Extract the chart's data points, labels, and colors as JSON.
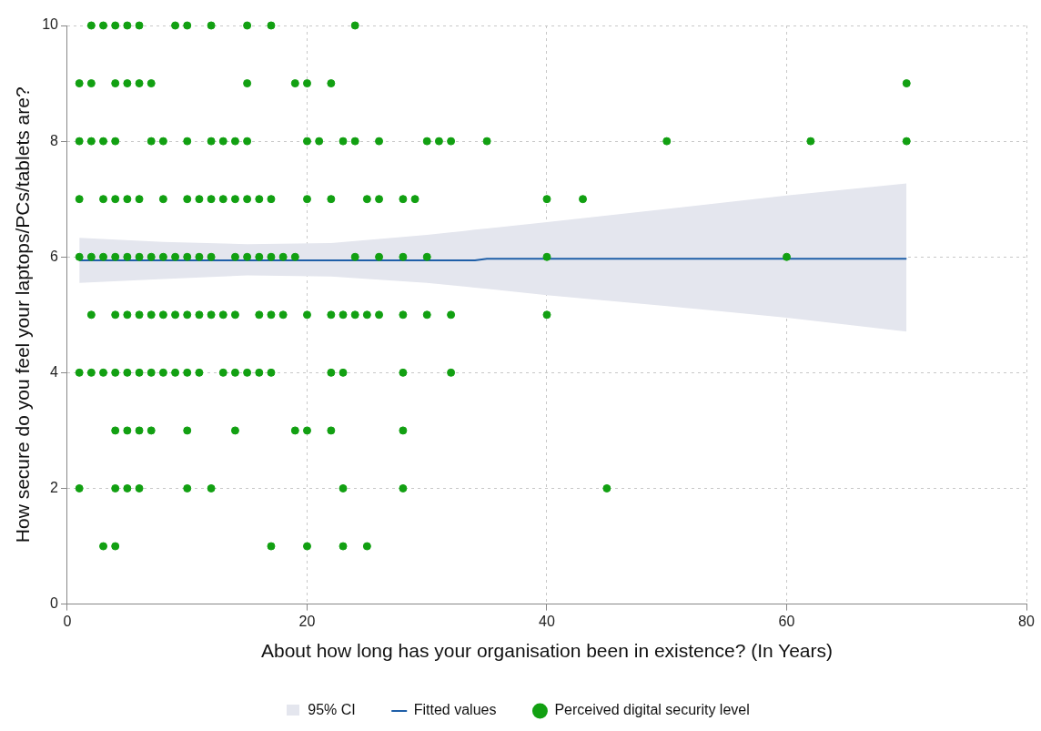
{
  "chart_data": {
    "type": "scatter",
    "xlabel": "About how long has your organisation been in existence? (In Years)",
    "ylabel": "How secure do you feel your laptops/PCs/tablets are?",
    "xlim": [
      0,
      80
    ],
    "xticks": [
      0,
      20,
      40,
      60,
      80
    ],
    "ylim": [
      0,
      10
    ],
    "yticks": [
      0,
      2,
      4,
      6,
      8,
      10
    ],
    "grid": true,
    "legend": "bottom",
    "annotations": [
      "95% CI"
    ],
    "series": [
      {
        "name": "Fitted values",
        "type": "line",
        "marker": "none",
        "color": "#1f5fa8",
        "x": [
          1,
          8,
          15,
          22,
          30,
          34,
          35,
          40,
          50,
          60,
          70
        ],
        "values": [
          5.94,
          5.94,
          5.94,
          5.94,
          5.94,
          5.94,
          5.97,
          5.97,
          5.97,
          5.97,
          5.97
        ],
        "lower": [
          5.55,
          5.62,
          5.68,
          5.66,
          5.55,
          5.47,
          5.45,
          5.34,
          5.15,
          4.95,
          4.71
        ],
        "upper": [
          6.33,
          6.26,
          6.22,
          6.24,
          6.38,
          6.47,
          6.49,
          6.6,
          6.83,
          7.06,
          7.27
        ]
      },
      {
        "name": "Perceived digital security level",
        "marker": "circle",
        "color": "#12a012",
        "x": [
          2,
          3,
          4,
          5,
          6,
          9,
          10,
          12,
          15,
          17,
          24,
          1,
          2,
          4,
          5,
          6,
          7,
          15,
          19,
          20,
          22,
          70,
          1,
          2,
          3,
          4,
          7,
          8,
          10,
          12,
          13,
          14,
          15,
          20,
          21,
          23,
          24,
          26,
          30,
          31,
          32,
          35,
          50,
          62,
          70,
          1,
          3,
          4,
          5,
          6,
          8,
          10,
          11,
          12,
          13,
          14,
          15,
          16,
          17,
          20,
          22,
          25,
          26,
          28,
          29,
          40,
          43,
          1,
          2,
          3,
          4,
          5,
          6,
          7,
          8,
          9,
          10,
          11,
          12,
          14,
          15,
          16,
          17,
          18,
          19,
          24,
          26,
          28,
          30,
          40,
          60,
          2,
          4,
          5,
          6,
          7,
          8,
          9,
          10,
          11,
          12,
          13,
          14,
          16,
          17,
          18,
          20,
          22,
          23,
          24,
          25,
          26,
          28,
          30,
          32,
          40,
          1,
          2,
          3,
          4,
          5,
          6,
          7,
          8,
          9,
          10,
          11,
          13,
          14,
          15,
          16,
          17,
          22,
          23,
          28,
          32,
          4,
          5,
          6,
          7,
          10,
          14,
          19,
          20,
          22,
          28,
          1,
          4,
          5,
          6,
          10,
          12,
          23,
          28,
          45,
          3,
          4,
          17,
          20,
          23,
          25
        ],
        "values": [
          10,
          10,
          10,
          10,
          10,
          10,
          10,
          10,
          10,
          10,
          10,
          9,
          9,
          9,
          9,
          9,
          9,
          9,
          9,
          9,
          9,
          9,
          8,
          8,
          8,
          8,
          8,
          8,
          8,
          8,
          8,
          8,
          8,
          8,
          8,
          8,
          8,
          8,
          8,
          8,
          8,
          8,
          8,
          8,
          8,
          7,
          7,
          7,
          7,
          7,
          7,
          7,
          7,
          7,
          7,
          7,
          7,
          7,
          7,
          7,
          7,
          7,
          7,
          7,
          7,
          7,
          7,
          6,
          6,
          6,
          6,
          6,
          6,
          6,
          6,
          6,
          6,
          6,
          6,
          6,
          6,
          6,
          6,
          6,
          6,
          6,
          6,
          6,
          6,
          6,
          6,
          5,
          5,
          5,
          5,
          5,
          5,
          5,
          5,
          5,
          5,
          5,
          5,
          5,
          5,
          5,
          5,
          5,
          5,
          5,
          5,
          5,
          5,
          5,
          5,
          5,
          4,
          4,
          4,
          4,
          4,
          4,
          4,
          4,
          4,
          4,
          4,
          4,
          4,
          4,
          4,
          4,
          4,
          4,
          4,
          4,
          3,
          3,
          3,
          3,
          3,
          3,
          3,
          3,
          3,
          3,
          2,
          2,
          2,
          2,
          2,
          2,
          2,
          2,
          2,
          1,
          1,
          1,
          1,
          1,
          1
        ]
      }
    ]
  }
}
